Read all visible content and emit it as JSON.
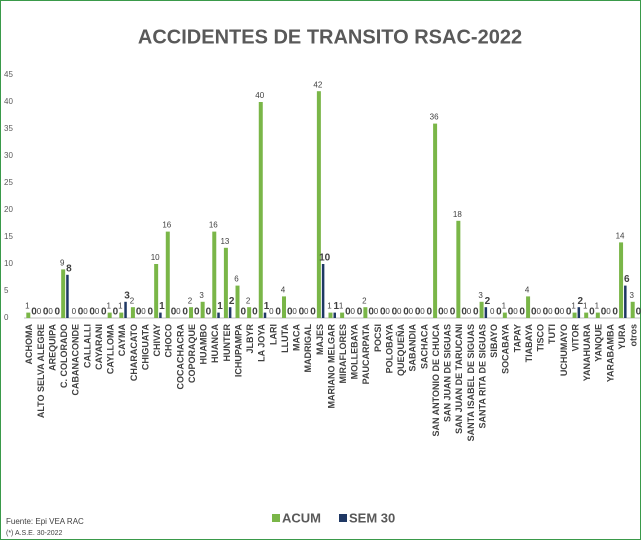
{
  "chart_data": {
    "type": "bar",
    "title": "ACCIDENTES DE TRANSITO RSAC-2022",
    "notes": [
      "Fuente: Epi VEA RAC",
      "(*) A.S.E. 30-2022"
    ],
    "categories": [
      "ACHOMA",
      "ALTO SELVA ALEGRE",
      "AREQUIPA",
      "C. COLORADO",
      "CABANACONDE",
      "CALLALLI",
      "CAYARANI",
      "CAYLLOMA",
      "CAYMA",
      "CHARACATO",
      "CHIGUATA",
      "CHIVAY",
      "CHOCO",
      "COCACHACRA",
      "COPORAQUE",
      "HUAMBO",
      "HUANCA",
      "HUNTER",
      "ICHUPAMPA",
      "JLBYR",
      "LA JOYA",
      "LARI",
      "LLUTA",
      "MACA",
      "MADRIGAL",
      "MAJES",
      "MARIANO MELGAR",
      "MIRAFLORES",
      "MOLLEBAYA",
      "PAUCARPATA",
      "POCSI",
      "POLOBAYA",
      "QUEQUEÑA",
      "SABANDIA",
      "SACHACA",
      "SAN ANTONIO DE CHUCA",
      "SAN JUAN DE SIGUAS",
      "SAN JUAN DE TARUCANI",
      "SANTA ISABEL DE SIGUAS",
      "SANTA RITA DE SIGUAS",
      "SIBAYO",
      "SOCABAYA",
      "TAPAY",
      "TIABAYA",
      "TISCO",
      "TUTI",
      "UCHUMAYO",
      "VITOR",
      "YANAHUARA",
      "YANQUE",
      "YARABAMBA",
      "YURA",
      "otros"
    ],
    "series": [
      {
        "name": "ACUM",
        "color": "#7ab648",
        "values": [
          1,
          0,
          0,
          9,
          0,
          0,
          0,
          1,
          1,
          2,
          0,
          10,
          16,
          0,
          2,
          3,
          16,
          13,
          6,
          2,
          40,
          0,
          4,
          0,
          0,
          42,
          1,
          1,
          0,
          2,
          0,
          0,
          0,
          0,
          0,
          36,
          0,
          18,
          0,
          3,
          0,
          1,
          0,
          4,
          0,
          0,
          0,
          1,
          1,
          1,
          0,
          14,
          3
        ]
      },
      {
        "name": "SEM 30",
        "color": "#1f3864",
        "values": [
          0,
          0,
          0,
          8,
          0,
          0,
          0,
          0,
          3,
          0,
          0,
          1,
          0,
          0,
          0,
          0,
          1,
          2,
          0,
          0,
          1,
          0,
          0,
          0,
          0,
          10,
          1,
          0,
          0,
          0,
          0,
          0,
          0,
          0,
          0,
          0,
          0,
          0,
          0,
          2,
          0,
          0,
          0,
          0,
          0,
          0,
          0,
          2,
          0,
          0,
          0,
          6,
          0
        ]
      }
    ],
    "ylim": [
      0,
      45
    ],
    "yticks": [
      0,
      5,
      10,
      15,
      20,
      25,
      30,
      35,
      40,
      45
    ],
    "grid": false,
    "legend": "bottom"
  }
}
